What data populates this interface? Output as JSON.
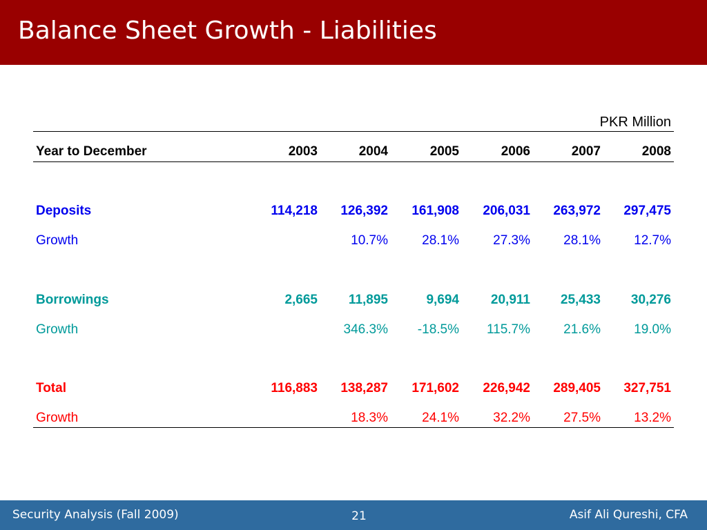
{
  "slide": {
    "title": "Balance Sheet Growth - Liabilities",
    "units": "PKR Million"
  },
  "colors": {
    "title_bar": "#990000",
    "footer_bar": "#2f6b9f",
    "deposits": "#0000ee",
    "borrowings": "#009a9a",
    "total": "#ff0000"
  },
  "table": {
    "header": {
      "label": "Year to December",
      "years": [
        "2003",
        "2004",
        "2005",
        "2006",
        "2007",
        "2008"
      ]
    },
    "deposits": {
      "label": "Deposits",
      "values": [
        "114,218",
        "126,392",
        "161,908",
        "206,031",
        "263,972",
        "297,475"
      ],
      "growth_label": "Growth",
      "growth": [
        "",
        "10.7%",
        "28.1%",
        "27.3%",
        "28.1%",
        "12.7%"
      ]
    },
    "borrowings": {
      "label": "Borrowings",
      "values": [
        "2,665",
        "11,895",
        "9,694",
        "20,911",
        "25,433",
        "30,276"
      ],
      "growth_label": "Growth",
      "growth": [
        "",
        "346.3%",
        "-18.5%",
        "115.7%",
        "21.6%",
        "19.0%"
      ]
    },
    "total": {
      "label": "Total",
      "values": [
        "116,883",
        "138,287",
        "171,602",
        "226,942",
        "289,405",
        "327,751"
      ],
      "growth_label": "Growth",
      "growth": [
        "",
        "18.3%",
        "24.1%",
        "32.2%",
        "27.5%",
        "13.2%"
      ]
    }
  },
  "footer": {
    "left": "Security Analysis (Fall 2009)",
    "page_number": "21",
    "right": "Asif Ali Qureshi, CFA"
  }
}
